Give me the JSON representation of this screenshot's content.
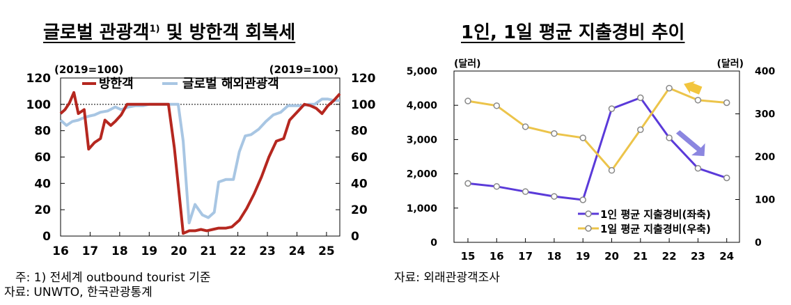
{
  "left": {
    "title": "글로벌 관광객",
    "title_sup": "1)",
    "title_suffix": " 및 방한객 회복세",
    "note": "주: 1) 전세계 outbound tourist 기준",
    "source": "자료: UNWTO, 한국관광통계"
  },
  "right": {
    "title": "1인, 1일 평균 지출경비 추이",
    "source": "자료: 외래관광객조사"
  },
  "colors": {
    "red": "#b5271f",
    "lightblue": "#a8c6e3",
    "purple": "#5a3ad9",
    "yellow": "#ecc44a",
    "arrow_yellow": "#f2c53d",
    "arrow_purple": "#8b86e0"
  },
  "chart_data": [
    {
      "type": "line",
      "left_unit": "(2019=100)",
      "right_unit": "(2019=100)",
      "ylim": [
        0,
        120
      ],
      "yticks": [
        "0",
        "20",
        "40",
        "60",
        "80",
        "100",
        "120"
      ],
      "xticks": [
        "16",
        "17",
        "18",
        "19",
        "20",
        "21",
        "22",
        "23",
        "24",
        "25"
      ],
      "xlim": [
        2016,
        2025.45
      ],
      "reference_line": 100,
      "series": [
        {
          "name": "방한객",
          "x": [
            2016.0,
            2016.15,
            2016.3,
            2016.45,
            2016.6,
            2016.8,
            2016.95,
            2017.15,
            2017.35,
            2017.5,
            2017.7,
            2017.85,
            2018.05,
            2018.25,
            2018.45,
            2018.65,
            2018.85,
            2019.0,
            2019.2,
            2019.35,
            2019.5,
            2019.65,
            2019.85,
            2020.0,
            2020.15,
            2020.35,
            2020.55,
            2020.75,
            2020.95,
            2021.15,
            2021.35,
            2021.6,
            2021.8,
            2022.05,
            2022.3,
            2022.55,
            2022.8,
            2023.05,
            2023.3,
            2023.55,
            2023.75,
            2024.0,
            2024.25,
            2024.45,
            2024.65,
            2024.85,
            2025.05,
            2025.25,
            2025.45
          ],
          "values": [
            93,
            96,
            101,
            109,
            93,
            96,
            66,
            71,
            74,
            88,
            84,
            87,
            92,
            100,
            100,
            100,
            100,
            100,
            100,
            100,
            100,
            100,
            67,
            35,
            2,
            4,
            4,
            5,
            4,
            5,
            6,
            6,
            7,
            12,
            21,
            32,
            45,
            60,
            72,
            74,
            88,
            94,
            100,
            99,
            97,
            93,
            99,
            103,
            108
          ]
        },
        {
          "name": "글로벌 해외관광객",
          "x": [
            2016.0,
            2016.2,
            2016.4,
            2016.6,
            2016.8,
            2016.95,
            2017.15,
            2017.35,
            2017.6,
            2017.85,
            2018.05,
            2018.3,
            2018.55,
            2018.8,
            2019.0,
            2019.3,
            2019.6,
            2019.85,
            2019.98,
            2020.15,
            2020.35,
            2020.55,
            2020.8,
            2021.0,
            2021.2,
            2021.35,
            2021.6,
            2021.85,
            2022.05,
            2022.25,
            2022.45,
            2022.7,
            2022.95,
            2023.2,
            2023.45,
            2023.7,
            2024.0,
            2024.2,
            2024.4,
            2024.6,
            2024.85,
            2025.05,
            2025.25,
            2025.45
          ],
          "values": [
            88,
            84,
            87,
            88,
            90,
            91,
            92,
            94,
            95,
            98,
            96,
            98,
            99,
            99,
            100,
            100,
            100,
            100,
            100,
            72,
            10,
            24,
            16,
            14,
            18,
            41,
            43,
            43,
            64,
            76,
            77,
            81,
            87,
            92,
            94,
            99,
            99,
            99,
            100,
            100,
            104,
            104,
            103,
            103
          ]
        }
      ]
    },
    {
      "type": "line",
      "left_unit": "(달러)",
      "right_unit": "(달러)",
      "categories": [
        "15",
        "16",
        "17",
        "18",
        "19",
        "20",
        "21",
        "22",
        "23",
        "24"
      ],
      "ylim_left": [
        0,
        5000
      ],
      "ylim_right": [
        0,
        400
      ],
      "yticks_left": [
        "0",
        "1,000",
        "2,000",
        "3,000",
        "4,000",
        "5,000"
      ],
      "yticks_right": [
        "0",
        "100",
        "200",
        "300",
        "400"
      ],
      "series": [
        {
          "name": "1인 평균 지출경비(좌축)",
          "axis": "left",
          "values": [
            1720,
            1630,
            1480,
            1340,
            1240,
            3900,
            4220,
            3050,
            2160,
            1880
          ]
        },
        {
          "name": "1일 평균 지출경비(우축)",
          "axis": "right",
          "values": [
            330,
            319,
            270,
            254,
            244,
            168,
            263,
            360,
            332,
            326
          ]
        }
      ]
    }
  ]
}
